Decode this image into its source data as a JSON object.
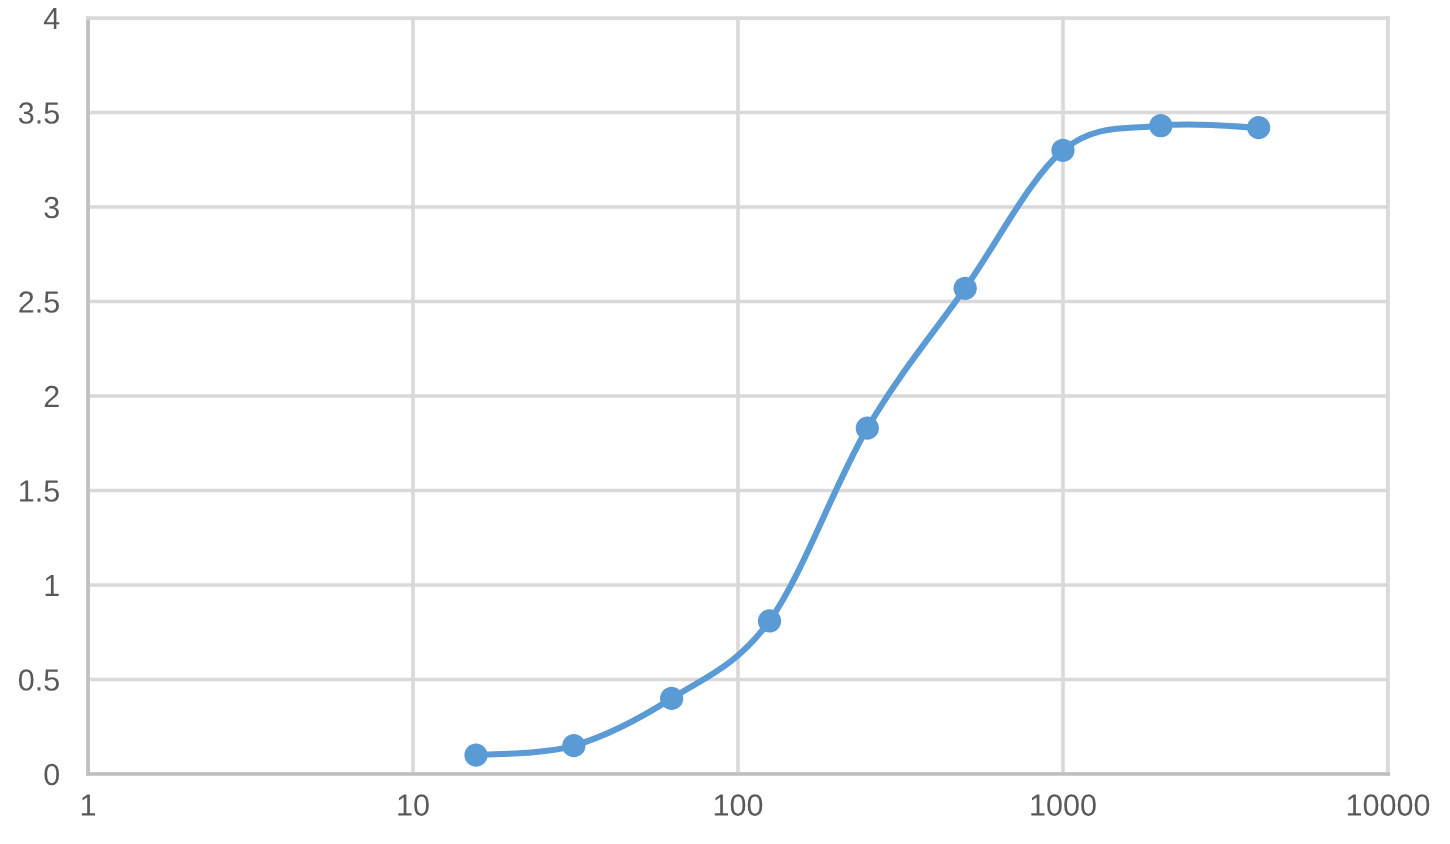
{
  "chart_data": {
    "type": "line",
    "x": [
      15.625,
      31.25,
      62.5,
      125,
      250,
      500,
      1000,
      2000,
      4000
    ],
    "series": [
      {
        "color": "#5b9bd5",
        "values": [
          0.1,
          0.15,
          0.4,
          0.81,
          1.83,
          2.57,
          3.3,
          3.43,
          3.42
        ]
      }
    ],
    "log": "x",
    "xlim": [
      1,
      10000
    ],
    "xticks": [
      1,
      10,
      100,
      1000,
      10000
    ],
    "ylim": [
      0,
      4
    ],
    "yticks": [
      0,
      0.5,
      1,
      1.5,
      2,
      2.5,
      3,
      3.5,
      4
    ],
    "grid": true,
    "marker": "circle",
    "line_style": "solid"
  }
}
